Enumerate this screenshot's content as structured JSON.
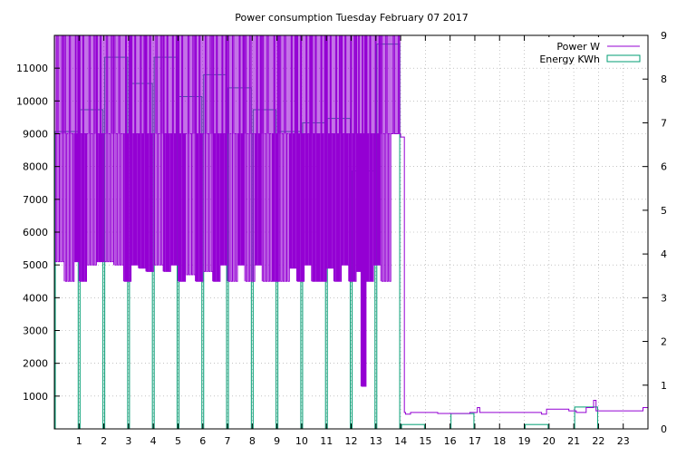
{
  "chart_data": {
    "type": "line",
    "title": "Power consumption Tuesday February 07 2017",
    "xlabel": "",
    "ylabel": "",
    "y2label": "",
    "x_range": [
      0,
      24
    ],
    "ylim": [
      0,
      12000
    ],
    "y2lim": [
      0,
      9
    ],
    "x_ticks": [
      1,
      2,
      3,
      4,
      5,
      6,
      7,
      8,
      9,
      10,
      11,
      12,
      13,
      14,
      15,
      16,
      17,
      18,
      19,
      20,
      21,
      22,
      23
    ],
    "y_ticks": [
      1000,
      2000,
      3000,
      4000,
      5000,
      6000,
      7000,
      8000,
      9000,
      10000,
      11000
    ],
    "y2_ticks": [
      0,
      1,
      2,
      3,
      4,
      5,
      6,
      7,
      8,
      9
    ],
    "grid": true,
    "legend_position": "top-right",
    "series": [
      {
        "name": "Power W",
        "axis": "y",
        "style": "line",
        "color": "#9400d3",
        "low_values": [
          [
            0.0,
            5100
          ],
          [
            0.4,
            4500
          ],
          [
            0.8,
            5100
          ],
          [
            1.0,
            4500
          ],
          [
            1.3,
            5000
          ],
          [
            1.7,
            5100
          ],
          [
            2.0,
            5100
          ],
          [
            2.4,
            5000
          ],
          [
            2.8,
            4500
          ],
          [
            3.1,
            5000
          ],
          [
            3.4,
            4900
          ],
          [
            3.7,
            4800
          ],
          [
            4.0,
            5000
          ],
          [
            4.4,
            4800
          ],
          [
            4.7,
            5000
          ],
          [
            5.0,
            4500
          ],
          [
            5.3,
            4700
          ],
          [
            5.7,
            4500
          ],
          [
            6.0,
            4800
          ],
          [
            6.4,
            4500
          ],
          [
            6.7,
            5000
          ],
          [
            7.0,
            4500
          ],
          [
            7.4,
            5000
          ],
          [
            7.7,
            4500
          ],
          [
            8.1,
            5000
          ],
          [
            8.4,
            4500
          ],
          [
            8.8,
            4500
          ],
          [
            9.1,
            4500
          ],
          [
            9.5,
            4900
          ],
          [
            9.8,
            4500
          ],
          [
            10.1,
            5000
          ],
          [
            10.4,
            4500
          ],
          [
            10.7,
            4500
          ],
          [
            11.0,
            4900
          ],
          [
            11.3,
            4500
          ],
          [
            11.6,
            5000
          ],
          [
            11.9,
            4500
          ],
          [
            12.2,
            4800
          ],
          [
            12.4,
            1300
          ],
          [
            12.6,
            4500
          ],
          [
            12.9,
            5000
          ],
          [
            13.2,
            4500
          ],
          [
            13.6,
            9000
          ],
          [
            14.0,
            9000
          ]
        ],
        "steps": [
          [
            14.0,
            8900
          ],
          [
            14.15,
            500
          ],
          [
            14.2,
            450
          ],
          [
            14.4,
            500
          ],
          [
            15.5,
            470
          ],
          [
            16.8,
            500
          ],
          [
            17.1,
            650
          ],
          [
            17.2,
            500
          ],
          [
            19.0,
            500
          ],
          [
            19.7,
            450
          ],
          [
            19.9,
            600
          ],
          [
            20.8,
            550
          ],
          [
            21.1,
            500
          ],
          [
            21.5,
            650
          ],
          [
            21.8,
            870
          ],
          [
            21.9,
            550
          ],
          [
            22.4,
            550
          ],
          [
            23.8,
            650
          ],
          [
            24.0,
            650
          ]
        ]
      },
      {
        "name": "Energy KWh",
        "axis": "y2",
        "style": "boxes",
        "color": "#009e73",
        "x": [
          0,
          1,
          2,
          3,
          4,
          5,
          6,
          7,
          8,
          9,
          10,
          11,
          12,
          13,
          14,
          15,
          16,
          17,
          18,
          19,
          20,
          21,
          22,
          23
        ],
        "values": [
          6.8,
          7.3,
          8.5,
          7.9,
          8.5,
          7.6,
          8.1,
          7.8,
          7.3,
          6.8,
          7.0,
          7.1,
          5.9,
          8.8,
          0.1,
          0.0,
          0.35,
          0.0,
          0.0,
          0.1,
          0.0,
          0.5,
          0.0,
          0.0
        ]
      }
    ]
  }
}
